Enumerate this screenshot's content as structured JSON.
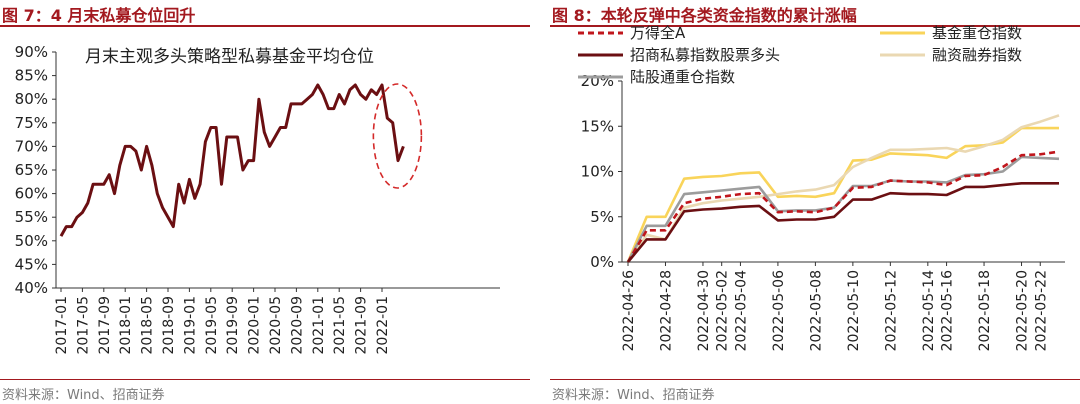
{
  "left": {
    "figure_title": "图 7：4 月末私募仓位回升",
    "source": "资料来源：Wind、招商证券",
    "colors": {
      "title": "#a3191f",
      "line": "#6b0f12",
      "highlight": "#d42a2a"
    },
    "chart_data": {
      "type": "line",
      "title": "",
      "xlabel": "",
      "ylabel": "",
      "annotation": "月末主观多头策略型私募基金平均仓位",
      "ylim": [
        0.4,
        0.9
      ],
      "yticks": [
        "40%",
        "45%",
        "50%",
        "55%",
        "60%",
        "65%",
        "70%",
        "75%",
        "80%",
        "85%",
        "90%"
      ],
      "xticks": [
        "2017-01",
        "2017-05",
        "2017-09",
        "2018-01",
        "2018-05",
        "2018-09",
        "2019-01",
        "2019-05",
        "2019-09",
        "2020-01",
        "2020-05",
        "2020-09",
        "2021-01",
        "2021-05",
        "2021-09",
        "2022-01"
      ],
      "x_start": "2017-01",
      "highlight": "dashed ellipse around 2022-01 to 2022-04",
      "series": [
        {
          "name": "月末主观多头策略型私募基金平均仓位",
          "values": [
            0.51,
            0.53,
            0.53,
            0.55,
            0.56,
            0.58,
            0.62,
            0.62,
            0.62,
            0.64,
            0.6,
            0.66,
            0.7,
            0.7,
            0.69,
            0.65,
            0.7,
            0.66,
            0.6,
            0.57,
            0.55,
            0.53,
            0.62,
            0.58,
            0.63,
            0.59,
            0.62,
            0.71,
            0.74,
            0.74,
            0.62,
            0.72,
            0.72,
            0.72,
            0.65,
            0.67,
            0.67,
            0.8,
            0.73,
            0.7,
            0.72,
            0.74,
            0.74,
            0.79,
            0.79,
            0.79,
            0.8,
            0.81,
            0.83,
            0.81,
            0.78,
            0.78,
            0.81,
            0.79,
            0.82,
            0.83,
            0.81,
            0.8,
            0.82,
            0.81,
            0.83,
            0.76,
            0.75,
            0.67,
            0.7
          ]
        }
      ]
    }
  },
  "right": {
    "figure_title": "图 8：本轮反弹中各类资金指数的累计涨幅",
    "source": "资料来源：Wind、招商证券",
    "colors": {
      "wande": "#c0161c",
      "jijin": "#f9d45a",
      "zhaoshang": "#6b0f12",
      "rongzi": "#ead8b2",
      "lugutong": "#9c9c9c",
      "title": "#a3191f"
    },
    "chart_data": {
      "type": "line",
      "title": "",
      "xlabel": "",
      "ylabel": "",
      "ylim": [
        0,
        20
      ],
      "yticks": [
        "0%",
        "5%",
        "10%",
        "15%",
        "20%"
      ],
      "categories": [
        "2022-04-26",
        "2022-04-27",
        "2022-04-28",
        "2022-04-29",
        "2022-04-30",
        "2022-05-02",
        "2022-05-04",
        "2022-05-05",
        "2022-05-06",
        "2022-05-07",
        "2022-05-08",
        "2022-05-09",
        "2022-05-10",
        "2022-05-11",
        "2022-05-12",
        "2022-05-13",
        "2022-05-14",
        "2022-05-16",
        "2022-05-17",
        "2022-05-18",
        "2022-05-19",
        "2022-05-20",
        "2022-05-22",
        "2022-05-23"
      ],
      "xticks": [
        "2022-04-26",
        "2022-04-28",
        "2022-04-30",
        "2022-05-02",
        "2022-05-04",
        "2022-05-06",
        "2022-05-08",
        "2022-05-10",
        "2022-05-12",
        "2022-05-14",
        "2022-05-16",
        "2022-05-18",
        "2022-05-20",
        "2022-05-22"
      ],
      "legend_position": "top",
      "series": [
        {
          "name": "万得全A",
          "style": "dashed",
          "color_key": "wande",
          "values": [
            0,
            3.5,
            3.5,
            6.5,
            7.0,
            7.2,
            7.5,
            7.6,
            5.5,
            5.6,
            5.5,
            6.0,
            8.2,
            8.3,
            9.0,
            8.9,
            8.8,
            8.5,
            9.5,
            9.6,
            10.5,
            11.8,
            11.9,
            12.2
          ]
        },
        {
          "name": "基金重仓指数",
          "style": "solid",
          "color_key": "jijin",
          "values": [
            0,
            5.0,
            5.0,
            9.2,
            9.4,
            9.5,
            9.8,
            9.9,
            7.2,
            7.3,
            7.2,
            7.6,
            11.2,
            11.3,
            12.0,
            11.9,
            11.8,
            11.5,
            12.8,
            12.9,
            13.2,
            14.8,
            14.8,
            14.8
          ]
        },
        {
          "name": "招商私募指数股票多头",
          "style": "solid",
          "color_key": "zhaoshang",
          "values": [
            0,
            2.5,
            2.5,
            5.6,
            5.8,
            5.9,
            6.1,
            6.2,
            4.6,
            4.7,
            4.7,
            5.0,
            6.9,
            6.9,
            7.6,
            7.5,
            7.5,
            7.4,
            8.3,
            8.3,
            8.5,
            8.7,
            8.7,
            8.7
          ]
        },
        {
          "name": "融资融券指数",
          "style": "solid",
          "color_key": "rongzi",
          "values": [
            0,
            3.0,
            2.5,
            6.0,
            6.5,
            6.8,
            7.0,
            7.2,
            7.5,
            7.8,
            8.0,
            8.5,
            10.5,
            11.5,
            12.4,
            12.4,
            12.5,
            12.6,
            12.2,
            12.8,
            13.5,
            14.9,
            15.5,
            16.2
          ]
        },
        {
          "name": "陆股通重仓指数",
          "style": "solid",
          "color_key": "lugutong",
          "values": [
            0,
            4.0,
            4.0,
            7.5,
            7.7,
            7.9,
            8.1,
            8.3,
            5.6,
            5.7,
            5.7,
            6.0,
            8.4,
            8.4,
            9.0,
            8.9,
            8.9,
            8.8,
            9.6,
            9.7,
            10.0,
            11.6,
            11.5,
            11.4
          ]
        }
      ]
    }
  }
}
